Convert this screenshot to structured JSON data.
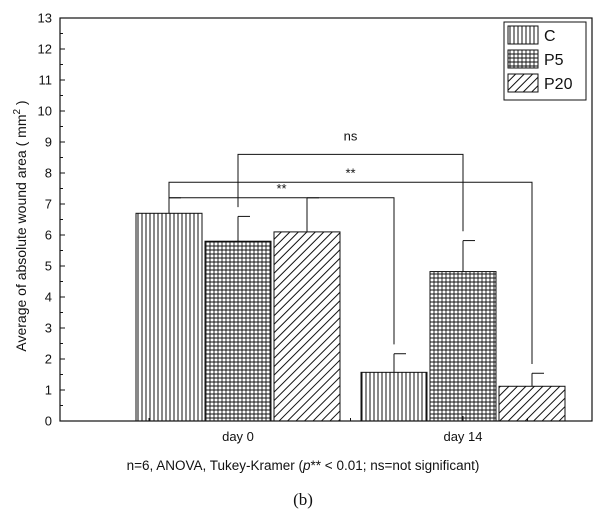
{
  "chart_data": {
    "type": "bar",
    "categories": [
      "day 0",
      "day 14"
    ],
    "series": [
      {
        "name": "C",
        "values": [
          6.7,
          1.57
        ],
        "errors": [
          0.5,
          0.6
        ],
        "pattern": "vertical"
      },
      {
        "name": "P5",
        "values": [
          5.8,
          4.82
        ],
        "errors": [
          0.8,
          1.0
        ],
        "pattern": "grid"
      },
      {
        "name": "P20",
        "values": [
          6.1,
          1.12
        ],
        "errors": [
          1.1,
          0.42
        ],
        "pattern": "diagonal"
      }
    ],
    "ylabel": "Average of absolute wound area ( mm",
    "ylabel_sup": "2",
    "ylabel_end": " )",
    "ylim": [
      0,
      13
    ],
    "yticks": [
      0,
      1,
      2,
      3,
      4,
      5,
      6,
      7,
      8,
      9,
      10,
      11,
      12,
      13
    ],
    "legend_position": "top-right",
    "significance": [
      {
        "label": "**",
        "from": [
          "day 0",
          "all"
        ],
        "to": [
          "day 14",
          "C"
        ],
        "y": 7.2
      },
      {
        "label": "**",
        "from": [
          "day 0",
          "C"
        ],
        "to": [
          "day 14",
          "P20"
        ],
        "y": 7.7
      },
      {
        "label": "ns",
        "from": [
          "day 0",
          "P5"
        ],
        "to": [
          "day 14",
          "P5"
        ],
        "y": 8.6
      }
    ]
  },
  "caption": {
    "prefix": "n=6, ANOVA, Tukey-Kramer (",
    "p_italic": "p",
    "suffix": "** < 0.01; ns=not significant)",
    "figure_label": "(b)"
  },
  "colors": {
    "bar_fill": "#ffffff",
    "stroke": "#111111"
  }
}
